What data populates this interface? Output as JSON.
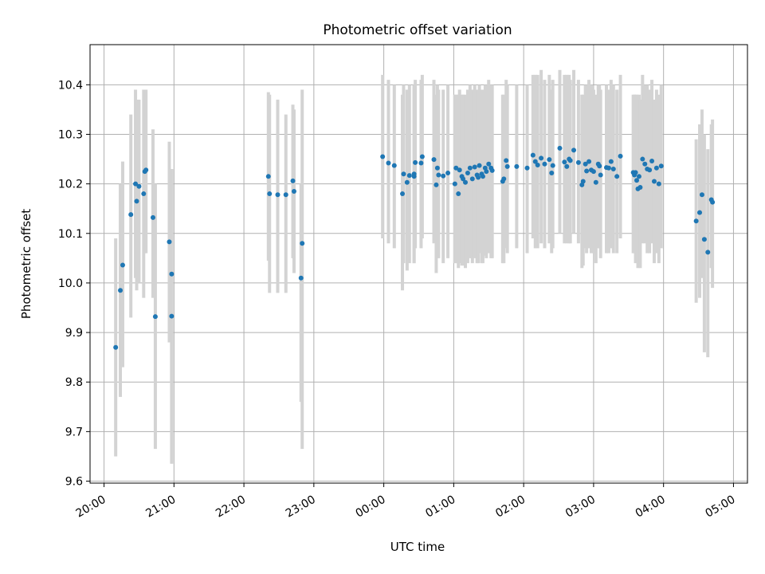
{
  "colors": {
    "marker": "#1f77b4",
    "errorbar": "#d3d3d3",
    "grid": "#b0b0b0",
    "axes": "#000000"
  },
  "chart_data": {
    "type": "scatter",
    "title": "Photometric offset variation",
    "xlabel": "UTC time",
    "ylabel": "Photometric offset",
    "grid": true,
    "xlim_hours": [
      19.8,
      29.2
    ],
    "ylim": [
      9.596,
      10.481
    ],
    "x_ticks": [
      {
        "hour": 20,
        "label": "20:00"
      },
      {
        "hour": 21,
        "label": "21:00"
      },
      {
        "hour": 22,
        "label": "22:00"
      },
      {
        "hour": 23,
        "label": "23:00"
      },
      {
        "hour": 24,
        "label": "00:00"
      },
      {
        "hour": 25,
        "label": "01:00"
      },
      {
        "hour": 26,
        "label": "02:00"
      },
      {
        "hour": 27,
        "label": "03:00"
      },
      {
        "hour": 28,
        "label": "04:00"
      },
      {
        "hour": 29,
        "label": "05:00"
      }
    ],
    "y_ticks": [
      {
        "value": 9.6,
        "label": "9.6"
      },
      {
        "value": 9.7,
        "label": "9.7"
      },
      {
        "value": 9.8,
        "label": "9.8"
      },
      {
        "value": 9.9,
        "label": "9.9"
      },
      {
        "value": 10.0,
        "label": "10.0"
      },
      {
        "value": 10.1,
        "label": "10.1"
      },
      {
        "value": 10.2,
        "label": "10.2"
      },
      {
        "value": 10.3,
        "label": "10.3"
      },
      {
        "value": 10.4,
        "label": "10.4"
      }
    ],
    "points": [
      [
        "20:10",
        9.87,
        9.65,
        10.09
      ],
      [
        "20:14",
        9.985,
        9.77,
        10.2
      ],
      [
        "20:16",
        10.036,
        9.83,
        10.245
      ],
      [
        "20:23",
        10.138,
        9.93,
        10.34
      ],
      [
        "20:27",
        10.2,
        10.01,
        10.39
      ],
      [
        "20:28",
        10.165,
        9.985,
        10.37
      ],
      [
        "20:30",
        10.195,
        10.0,
        10.37
      ],
      [
        "20:34",
        10.18,
        9.97,
        10.39
      ],
      [
        "20:35",
        10.225,
        10.06,
        10.39
      ],
      [
        "20:36",
        10.228,
        10.06,
        10.39
      ],
      [
        "20:42",
        10.132,
        9.97,
        10.31
      ],
      [
        "20:44",
        9.932,
        9.665,
        10.2
      ],
      [
        "20:56",
        10.083,
        9.88,
        10.285
      ],
      [
        "20:58",
        10.018,
        9.8,
        10.23
      ],
      [
        "20:58",
        9.933,
        9.635,
        10.23
      ],
      [
        "22:21",
        10.215,
        10.045,
        10.385
      ],
      [
        "22:22",
        10.18,
        9.98,
        10.38
      ],
      [
        "22:29",
        10.178,
        9.98,
        10.37
      ],
      [
        "22:36",
        10.178,
        9.98,
        10.34
      ],
      [
        "22:42",
        10.206,
        10.05,
        10.36
      ],
      [
        "22:43",
        10.185,
        10.02,
        10.35
      ],
      [
        "22:49",
        10.01,
        9.76,
        10.2
      ],
      [
        "22:50",
        10.08,
        9.665,
        10.39
      ],
      [
        "23:59",
        10.255,
        10.09,
        10.42
      ],
      [
        "00:04",
        10.242,
        10.08,
        10.41
      ],
      [
        "00:09",
        10.237,
        10.07,
        10.4
      ],
      [
        "00:16",
        10.18,
        9.985,
        10.38
      ],
      [
        "00:17",
        10.22,
        10.04,
        10.4
      ],
      [
        "00:20",
        10.203,
        10.025,
        10.39
      ],
      [
        "00:22",
        10.217,
        10.04,
        10.4
      ],
      [
        "00:26",
        10.215,
        10.04,
        10.4
      ],
      [
        "00:26",
        10.22,
        10.04,
        10.4
      ],
      [
        "00:27",
        10.243,
        10.07,
        10.41
      ],
      [
        "00:32",
        10.242,
        10.07,
        10.41
      ],
      [
        "00:33",
        10.255,
        10.09,
        10.42
      ],
      [
        "00:43",
        10.249,
        10.08,
        10.41
      ],
      [
        "00:45",
        10.198,
        10.02,
        10.38
      ],
      [
        "00:46",
        10.232,
        10.06,
        10.4
      ],
      [
        "00:47",
        10.218,
        10.05,
        10.39
      ],
      [
        "00:51",
        10.216,
        10.04,
        10.39
      ],
      [
        "00:55",
        10.222,
        10.05,
        10.4
      ],
      [
        "01:01",
        10.2,
        10.04,
        10.38
      ],
      [
        "01:02",
        10.232,
        10.04,
        10.38
      ],
      [
        "01:04",
        10.18,
        10.03,
        10.38
      ],
      [
        "01:05",
        10.228,
        10.04,
        10.39
      ],
      [
        "01:07",
        10.215,
        10.035,
        10.38
      ],
      [
        "01:08",
        10.21,
        10.035,
        10.38
      ],
      [
        "01:10",
        10.203,
        10.03,
        10.38
      ],
      [
        "01:12",
        10.222,
        10.04,
        10.39
      ],
      [
        "01:14",
        10.232,
        10.05,
        10.4
      ],
      [
        "01:16",
        10.21,
        10.04,
        10.39
      ],
      [
        "01:18",
        10.234,
        10.05,
        10.4
      ],
      [
        "01:20",
        10.218,
        10.04,
        10.39
      ],
      [
        "01:21",
        10.213,
        10.04,
        10.39
      ],
      [
        "01:22",
        10.237,
        10.06,
        10.4
      ],
      [
        "01:24",
        10.22,
        10.04,
        10.39
      ],
      [
        "01:25",
        10.215,
        10.04,
        10.39
      ],
      [
        "01:27",
        10.232,
        10.055,
        10.4
      ],
      [
        "01:28",
        10.225,
        10.05,
        10.4
      ],
      [
        "01:30",
        10.24,
        10.06,
        10.41
      ],
      [
        "01:32",
        10.232,
        10.05,
        10.4
      ],
      [
        "01:33",
        10.227,
        10.05,
        10.4
      ],
      [
        "01:42",
        10.205,
        10.04,
        10.38
      ],
      [
        "01:43",
        10.21,
        10.04,
        10.38
      ],
      [
        "01:45",
        10.247,
        10.07,
        10.41
      ],
      [
        "01:46",
        10.235,
        10.06,
        10.4
      ],
      [
        "01:54",
        10.235,
        10.07,
        10.4
      ],
      [
        "02:03",
        10.232,
        10.06,
        10.4
      ],
      [
        "02:08",
        10.258,
        10.09,
        10.42
      ],
      [
        "02:10",
        10.245,
        10.07,
        10.42
      ],
      [
        "02:12",
        10.238,
        10.07,
        10.42
      ],
      [
        "02:15",
        10.252,
        10.08,
        10.43
      ],
      [
        "02:18",
        10.24,
        10.07,
        10.41
      ],
      [
        "02:22",
        10.249,
        10.08,
        10.42
      ],
      [
        "02:24",
        10.222,
        10.06,
        10.39
      ],
      [
        "02:25",
        10.237,
        10.07,
        10.41
      ],
      [
        "02:31",
        10.272,
        10.1,
        10.43
      ],
      [
        "02:35",
        10.244,
        10.08,
        10.42
      ],
      [
        "02:37",
        10.235,
        10.08,
        10.42
      ],
      [
        "02:39",
        10.25,
        10.08,
        10.42
      ],
      [
        "02:40",
        10.247,
        10.08,
        10.41
      ],
      [
        "02:43",
        10.268,
        10.1,
        10.43
      ],
      [
        "02:47",
        10.243,
        10.08,
        10.41
      ],
      [
        "02:50",
        10.198,
        10.03,
        10.38
      ],
      [
        "02:51",
        10.205,
        10.035,
        10.38
      ],
      [
        "02:53",
        10.24,
        10.07,
        10.4
      ],
      [
        "02:54",
        10.226,
        10.06,
        10.4
      ],
      [
        "02:56",
        10.245,
        10.07,
        10.41
      ],
      [
        "02:58",
        10.228,
        10.06,
        10.4
      ],
      [
        "03:00",
        10.225,
        10.06,
        10.39
      ],
      [
        "03:02",
        10.203,
        10.04,
        10.38
      ],
      [
        "03:04",
        10.24,
        10.07,
        10.4
      ],
      [
        "03:05",
        10.236,
        10.07,
        10.4
      ],
      [
        "03:06",
        10.218,
        10.05,
        10.39
      ],
      [
        "03:11",
        10.233,
        10.06,
        10.4
      ],
      [
        "03:13",
        10.232,
        10.06,
        10.39
      ],
      [
        "03:15",
        10.245,
        10.07,
        10.41
      ],
      [
        "03:17",
        10.23,
        10.06,
        10.4
      ],
      [
        "03:20",
        10.215,
        10.06,
        10.39
      ],
      [
        "03:23",
        10.256,
        10.09,
        10.42
      ],
      [
        "03:34",
        10.223,
        10.06,
        10.38
      ],
      [
        "03:35",
        10.218,
        10.06,
        10.38
      ],
      [
        "03:36",
        10.223,
        10.04,
        10.38
      ],
      [
        "03:37",
        10.207,
        10.05,
        10.38
      ],
      [
        "03:38",
        10.19,
        10.03,
        10.37
      ],
      [
        "03:39",
        10.215,
        10.05,
        10.38
      ],
      [
        "03:40",
        10.193,
        10.03,
        10.37
      ],
      [
        "03:42",
        10.25,
        10.08,
        10.42
      ],
      [
        "03:44",
        10.24,
        10.08,
        10.4
      ],
      [
        "03:46",
        10.23,
        10.06,
        10.4
      ],
      [
        "03:48",
        10.228,
        10.06,
        10.39
      ],
      [
        "03:50",
        10.246,
        10.08,
        10.41
      ],
      [
        "03:52",
        10.205,
        10.04,
        10.37
      ],
      [
        "03:54",
        10.232,
        10.06,
        10.39
      ],
      [
        "03:56",
        10.2,
        10.04,
        10.38
      ],
      [
        "03:58",
        10.236,
        10.07,
        10.4
      ],
      [
        "04:28",
        10.125,
        9.96,
        10.29
      ],
      [
        "04:31",
        10.142,
        9.97,
        10.32
      ],
      [
        "04:33",
        10.178,
        10.01,
        10.35
      ],
      [
        "04:35",
        10.088,
        9.86,
        10.3
      ],
      [
        "04:38",
        10.062,
        9.85,
        10.27
      ],
      [
        "04:41",
        10.168,
        10.03,
        10.32
      ],
      [
        "04:42",
        10.163,
        9.99,
        10.33
      ]
    ]
  }
}
